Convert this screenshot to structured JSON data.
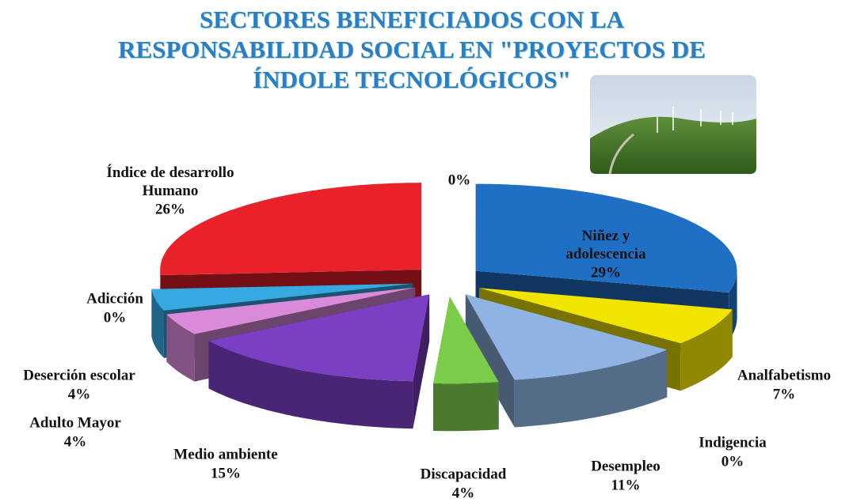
{
  "chart_data": {
    "type": "pie3d",
    "title": "SECTORES BENEFICIADOS CON LA RESPONSABILIDAD SOCIAL EN \"PROYECTOS DE ÍNDOLE TECNOLÓGICOS\"",
    "categories": [
      null,
      "Niñez y adolescencia",
      "Analfabetismo",
      "Indigencia",
      "Desempleo",
      "Discapacidad",
      "Medio ambiente",
      "Adulto Mayor",
      "Deserción escolar",
      "Adicción",
      "Índice de desarrollo Humano"
    ],
    "values": [
      0,
      29,
      7,
      0,
      11,
      4,
      15,
      4,
      4,
      0,
      26
    ],
    "value_labels": [
      "0%",
      "29%",
      "7%",
      "0%",
      "11%",
      "4%",
      "15%",
      "4%",
      "4%",
      "0%",
      "26%"
    ],
    "colors": [
      "#999999",
      "#1f6fc5",
      "#f0e400",
      "#8b4a12",
      "#8fb4e3",
      "#7ccc4c",
      "#7b3fc4",
      "#d98bd9",
      "#36a9e1",
      "#2a3f6a",
      "#e8212b"
    ]
  }
}
